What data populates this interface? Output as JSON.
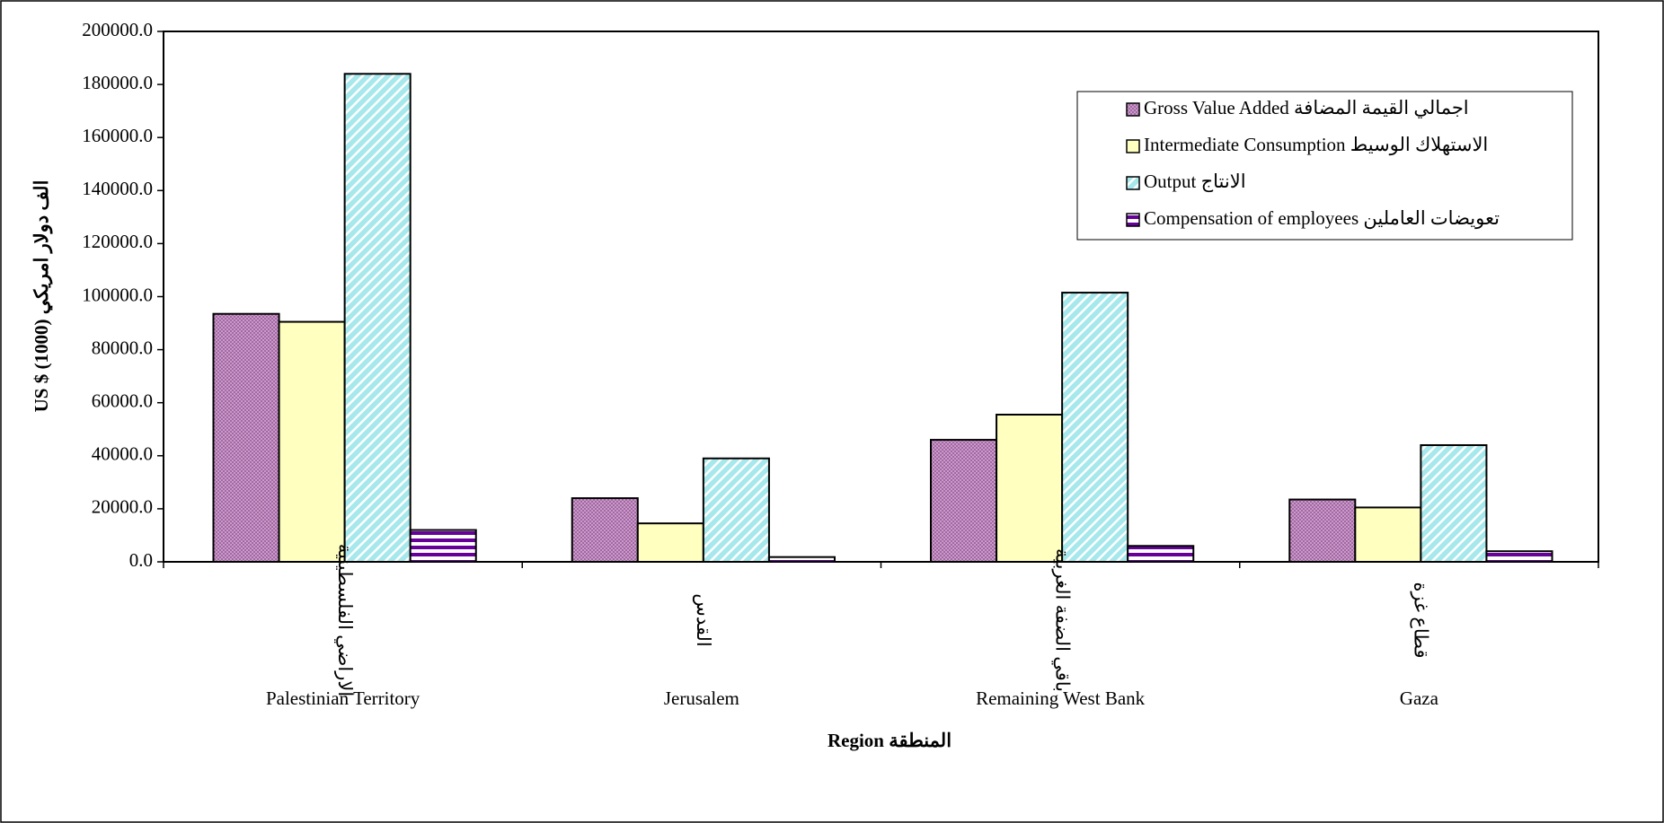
{
  "chart_data": {
    "type": "bar",
    "y_label": "US $ (1000) الف دولار امريكي",
    "x_label": "Region المنطقة",
    "categories": [
      "Palestinian Territory",
      "Jerusalem",
      "Remaining West Bank",
      "Gaza"
    ],
    "categories_ar": [
      "الاراضي الفلسطينية",
      "القدس",
      "باقي الضفة الغربية",
      "قطاع غزة"
    ],
    "series": [
      {
        "name": "Gross Value Added اجمالي القيمة المضافة",
        "color": "#cc99cc",
        "values": [
          93500,
          24000,
          46000,
          23500
        ]
      },
      {
        "name": "Intermediate Consumption الاستهلاك الوسيط",
        "color": "#ffffc0",
        "values": [
          90500,
          14500,
          55500,
          20500
        ]
      },
      {
        "name": "Output الانتاج",
        "color": "#a6e8ec",
        "values": [
          184000,
          39000,
          101500,
          44000
        ]
      },
      {
        "name": "Compensation of employees تعويضات العاملين",
        "color": "#660099",
        "values": [
          12000,
          1800,
          6000,
          4000
        ]
      }
    ],
    "ylim": [
      0,
      200000
    ],
    "yticks": [
      {
        "value": 0,
        "label": "0.0"
      },
      {
        "value": 20000,
        "label": "20000.0"
      },
      {
        "value": 40000,
        "label": "40000.0"
      },
      {
        "value": 60000,
        "label": "60000.0"
      },
      {
        "value": 80000,
        "label": "80000.0"
      },
      {
        "value": 100000,
        "label": "100000.0"
      },
      {
        "value": 120000,
        "label": "120000.0"
      },
      {
        "value": 140000,
        "label": "140000.0"
      },
      {
        "value": 160000,
        "label": "160000.0"
      },
      {
        "value": 180000,
        "label": "180000.0"
      },
      {
        "value": 200000,
        "label": "200000.0"
      }
    ],
    "legend": "upper right"
  }
}
